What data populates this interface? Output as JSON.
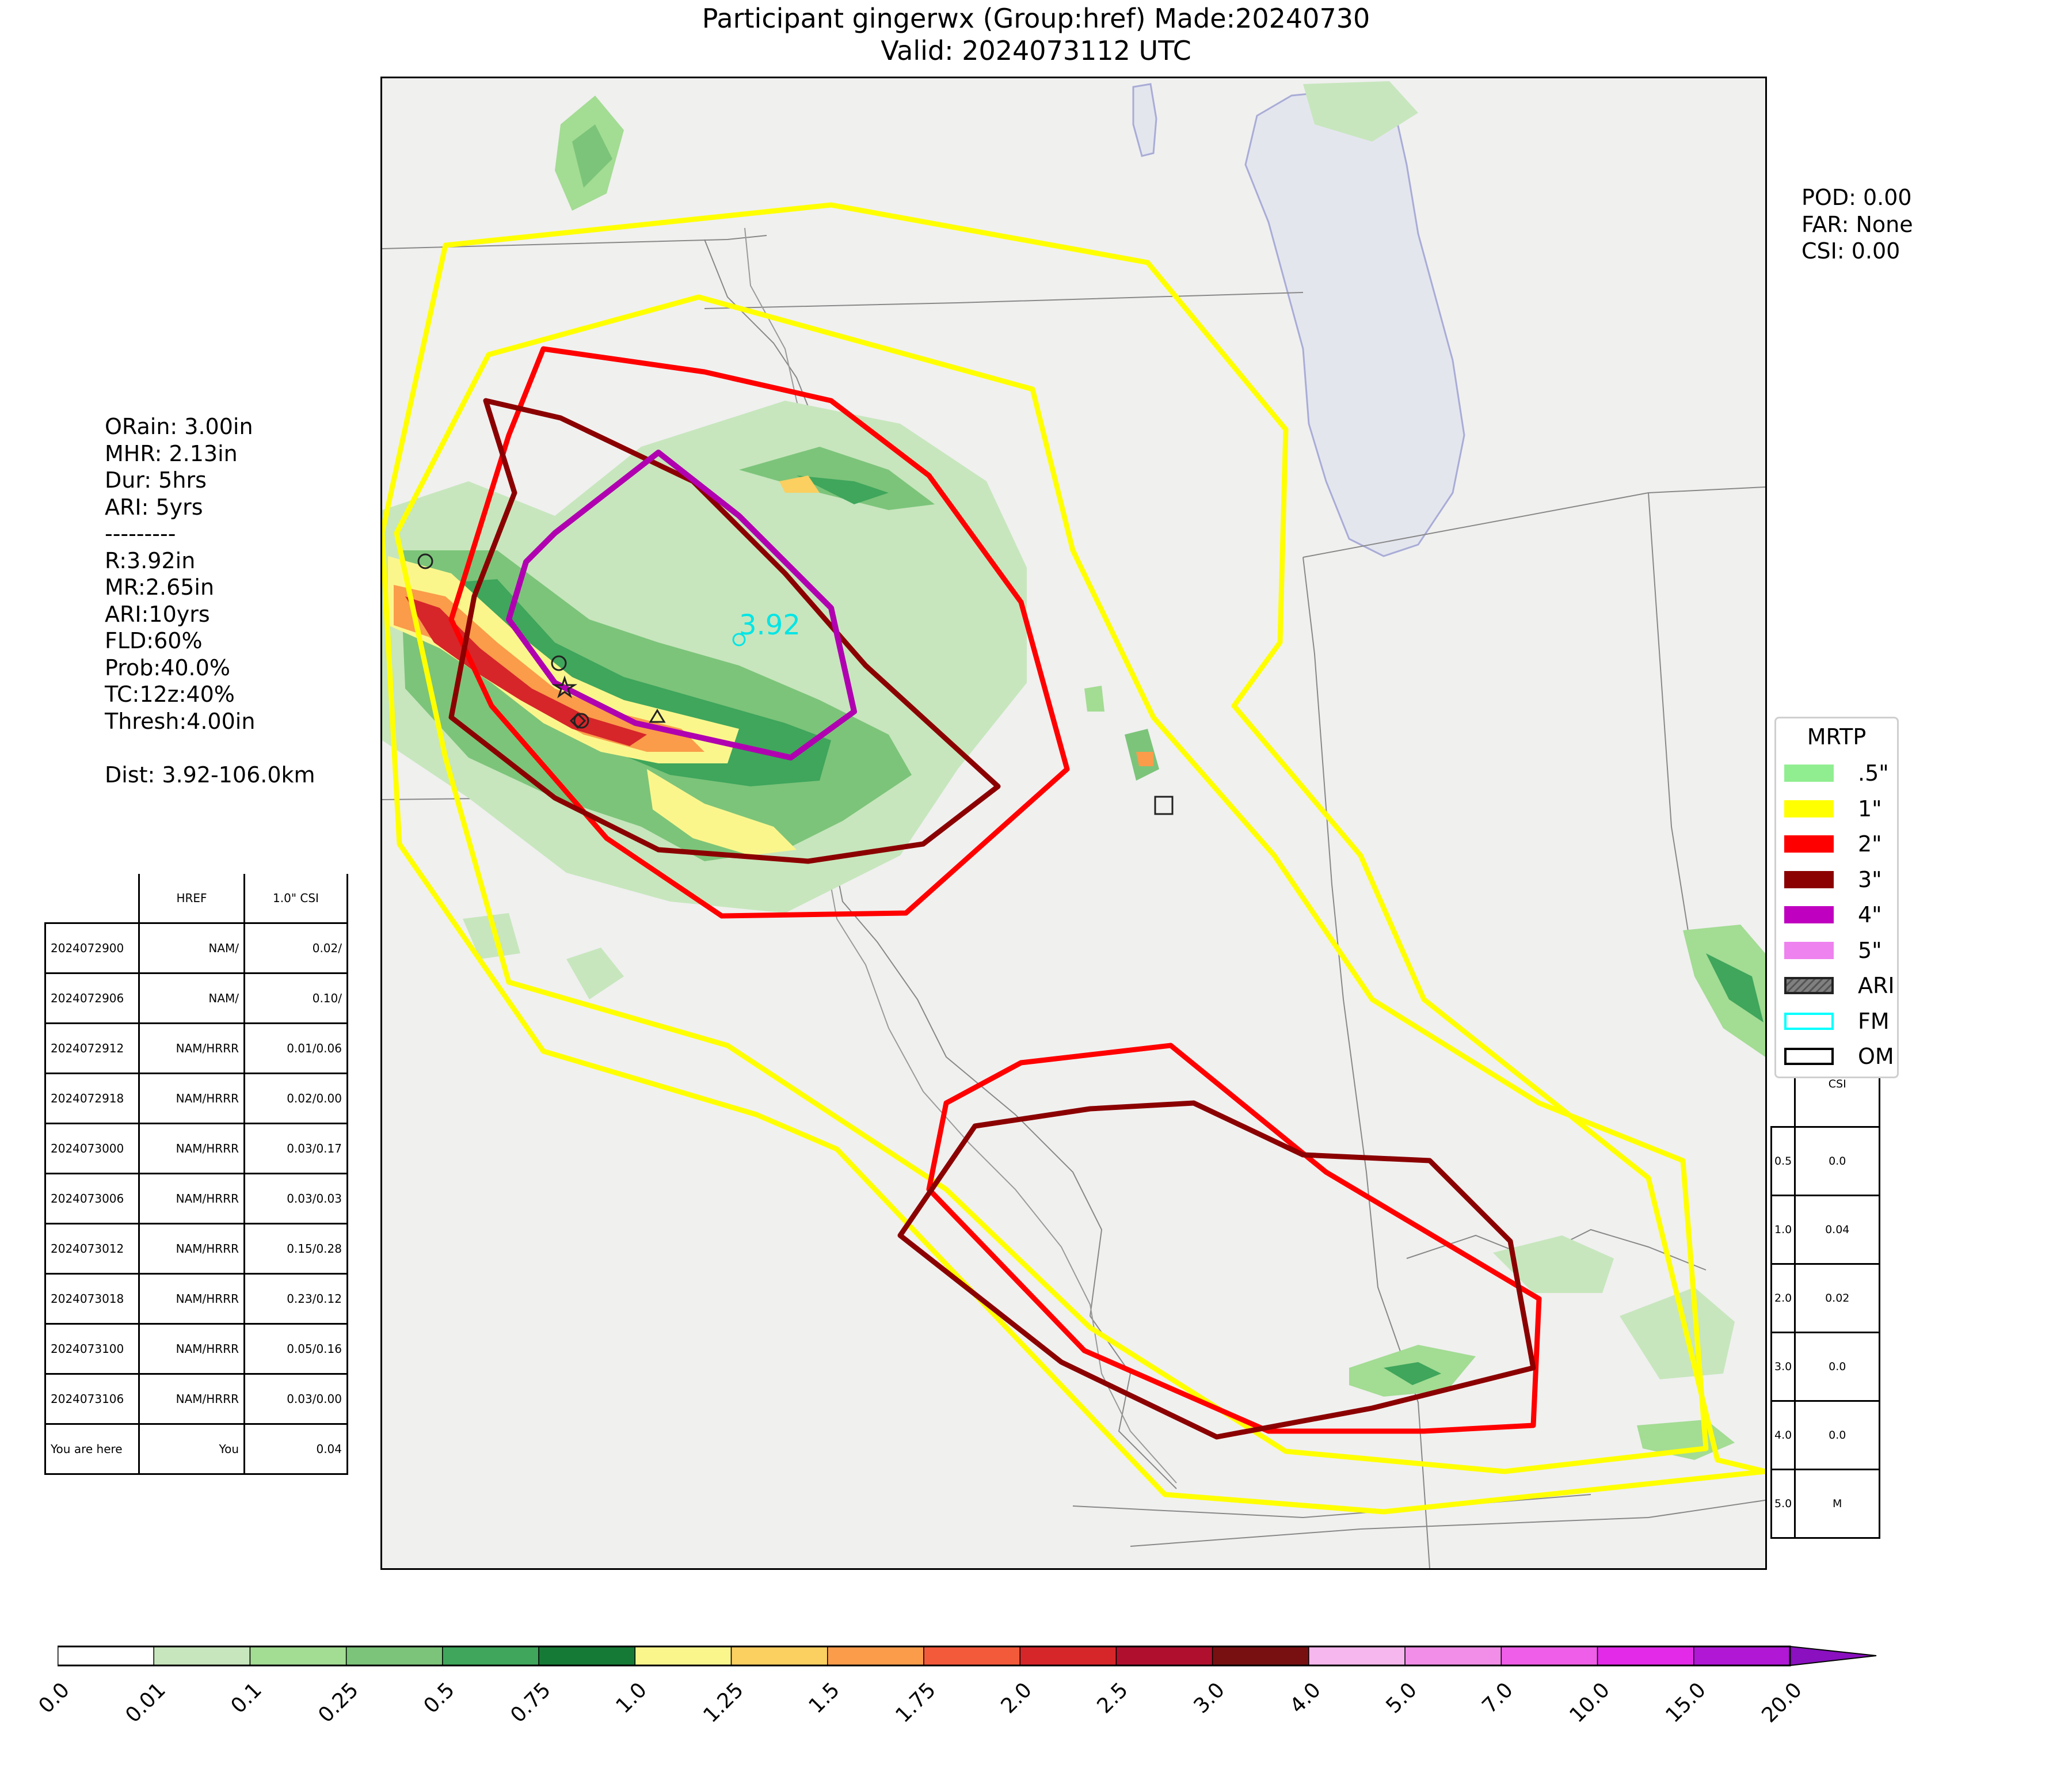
{
  "header": {
    "title_line1": "Participant gingerwx (Group:href) Made:20240730",
    "title_line2": "Valid: 2024073112 UTC"
  },
  "stats_left": [
    "ORain: 3.00in",
    "MHR: 2.13in",
    "Dur: 5hrs",
    "ARI: 5yrs",
    "---------",
    "R:3.92in",
    "MR:2.65in",
    "ARI:10yrs",
    "FLD:60%",
    "Prob:40.0%",
    "TC:12z:40%",
    "Thresh:4.00in",
    "",
    "Dist: 3.92-106.0km"
  ],
  "stats_right": [
    "POD: 0.00",
    "FAR: None",
    "CSI: 0.00"
  ],
  "map_label": "3.92",
  "history_table": {
    "headers": [
      "",
      "HREF",
      "1.0\" CSI"
    ],
    "rows": [
      [
        "2024072900",
        "NAM/",
        "0.02/"
      ],
      [
        "2024072906",
        "NAM/",
        "0.10/"
      ],
      [
        "2024072912",
        "NAM/HRRR",
        "0.01/0.06"
      ],
      [
        "2024072918",
        "NAM/HRRR",
        "0.02/0.00"
      ],
      [
        "2024073000",
        "NAM/HRRR",
        "0.03/0.17"
      ],
      [
        "2024073006",
        "NAM/HRRR",
        "0.03/0.03"
      ],
      [
        "2024073012",
        "NAM/HRRR",
        "0.15/0.28"
      ],
      [
        "2024073018",
        "NAM/HRRR",
        "0.23/0.12"
      ],
      [
        "2024073100",
        "NAM/HRRR",
        "0.05/0.16"
      ],
      [
        "2024073106",
        "NAM/HRRR",
        "0.03/0.00"
      ],
      [
        "You are here",
        "You",
        "0.04"
      ]
    ]
  },
  "csi_table": {
    "header": "CSI",
    "rows": [
      [
        "0.5",
        "0.0"
      ],
      [
        "1.0",
        "0.04"
      ],
      [
        "2.0",
        "0.02"
      ],
      [
        "3.0",
        "0.0"
      ],
      [
        "4.0",
        "0.0"
      ],
      [
        "5.0",
        "M"
      ]
    ]
  },
  "legend": {
    "title": "MRTP",
    "items": [
      {
        "label": ".5\"",
        "color": "#90ee90"
      },
      {
        "label": "1\"",
        "color": "#ffff00"
      },
      {
        "label": "2\"",
        "color": "#ff0000"
      },
      {
        "label": "3\"",
        "color": "#8b0000"
      },
      {
        "label": "4\"",
        "color": "#c000c0"
      },
      {
        "label": "5\"",
        "color": "#ee82ee"
      },
      {
        "label": "ARI",
        "color": "#808080"
      },
      {
        "label": "FM",
        "color": "#00ffff"
      },
      {
        "label": "OM",
        "color": "#000000"
      }
    ]
  },
  "colorbar": {
    "ticks": [
      "0.0",
      "0.01",
      "0.1",
      "0.25",
      "0.5",
      "0.75",
      "1.0",
      "1.25",
      "1.5",
      "1.75",
      "2.0",
      "2.5",
      "3.0",
      "4.0",
      "5.0",
      "7.0",
      "10.0",
      "15.0",
      "20.0"
    ],
    "colors": [
      "#ffffff",
      "#c7e6bd",
      "#a3dc93",
      "#7cc47a",
      "#3fa65c",
      "#157a35",
      "#fbf68c",
      "#fbcf60",
      "#fa9c4a",
      "#f35a3a",
      "#d6262a",
      "#b0102e",
      "#781012",
      "#f6b6ee",
      "#f28ee8",
      "#ee5ee8",
      "#e22ae8",
      "#b018d6"
    ]
  }
}
